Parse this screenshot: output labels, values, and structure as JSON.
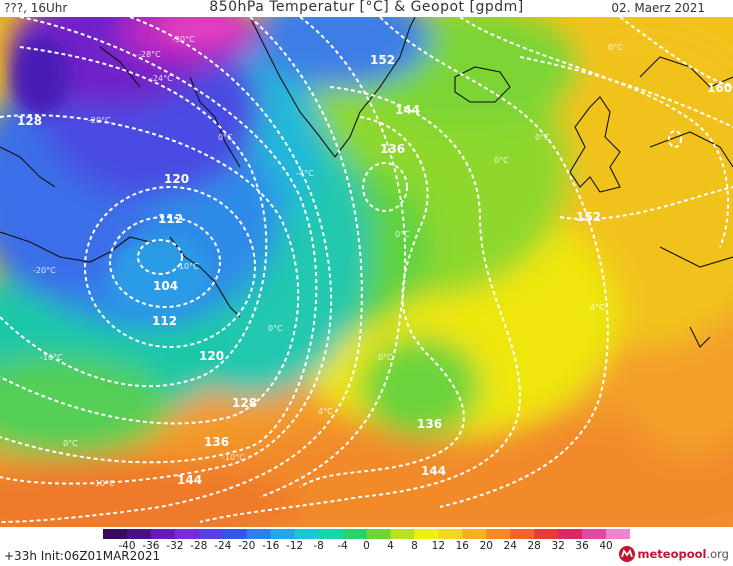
{
  "header": {
    "left": "???, 16Uhr",
    "title": "850hPa Temperatur [°C] & Geopot [gpdm]",
    "date": "02. Maerz 2021"
  },
  "map": {
    "geopot_labels": [
      "128",
      "120",
      "112",
      "104",
      "112",
      "120",
      "128",
      "136",
      "144",
      "136",
      "144",
      "152",
      "160",
      "152",
      "136",
      "144"
    ],
    "temp_labels": [
      "-30°C",
      "-28°C",
      "-24°C",
      "-20°C",
      "-16°C",
      "0°C",
      "0°C",
      "0°C",
      "0°C",
      "0°C",
      "4°C",
      "-4°C",
      "-10°C",
      "0°C",
      "4°C",
      "-10°C",
      "-10°C",
      "-20°C",
      "0°C",
      "0°C"
    ]
  },
  "colorbar": {
    "ticks": [
      "-40",
      "-36",
      "-32",
      "-28",
      "-24",
      "-20",
      "-16",
      "-12",
      "-8",
      "-4",
      "0",
      "4",
      "8",
      "12",
      "16",
      "20",
      "24",
      "28",
      "32",
      "36",
      "40"
    ],
    "colors": [
      "#3a0a5e",
      "#4b0f86",
      "#6a19b3",
      "#7a2bd6",
      "#5a3fe0",
      "#3456e6",
      "#2f7fe8",
      "#26a6e6",
      "#1fc4d6",
      "#19d4a8",
      "#2ad06a",
      "#6fd43a",
      "#b7e21e",
      "#eef00e",
      "#f5d71a",
      "#f6b024",
      "#f38a2a",
      "#ee6530",
      "#e43d3a",
      "#d82a66",
      "#e04aa6",
      "#f084d4"
    ]
  },
  "footer": {
    "left": "+33h  Init:06Z01MAR2021",
    "logo_brand": "meteopool",
    "logo_domain": ".org"
  }
}
